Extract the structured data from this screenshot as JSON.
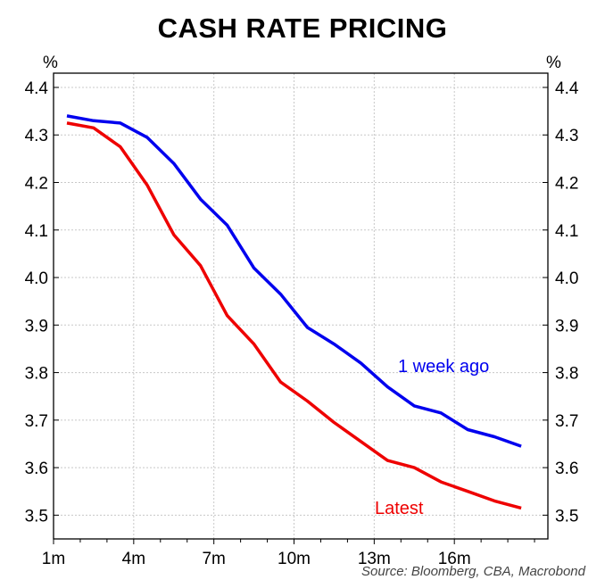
{
  "chart_data": {
    "type": "line",
    "title": "CASH RATE PRICING",
    "left_unit": "%",
    "right_unit": "%",
    "source": "Source: Bloomberg, CBA, Macrobond",
    "ylim": [
      3.45,
      4.43
    ],
    "yticks": [
      3.5,
      3.6,
      3.7,
      3.8,
      3.9,
      4.0,
      4.1,
      4.2,
      4.3,
      4.4
    ],
    "ytick_labels": [
      "3.5",
      "3.6",
      "3.7",
      "3.8",
      "3.9",
      "4.0",
      "4.1",
      "4.2",
      "4.3",
      "4.4"
    ],
    "xlim": [
      0,
      18.5
    ],
    "xticks": [
      0,
      3,
      6,
      9,
      12,
      15
    ],
    "xtick_labels": [
      "1m",
      "4m",
      "7m",
      "10m",
      "13m",
      "16m"
    ],
    "grid": true,
    "series": [
      {
        "name": "1 week ago",
        "color": "#0000ee",
        "x": [
          0.5,
          1.5,
          2.5,
          3.5,
          4.5,
          5.5,
          6.5,
          7.5,
          8.5,
          9.5,
          10.5,
          11.5,
          12.5,
          13.5,
          14.5,
          15.5,
          16.5,
          17.5
        ],
        "y": [
          4.34,
          4.33,
          4.325,
          4.295,
          4.24,
          4.165,
          4.11,
          4.02,
          3.965,
          3.895,
          3.86,
          3.82,
          3.77,
          3.73,
          3.715,
          3.68,
          3.665,
          3.645
        ]
      },
      {
        "name": "Latest",
        "color": "#ee0000",
        "x": [
          0.5,
          1.5,
          2.5,
          3.5,
          4.5,
          5.5,
          6.5,
          7.5,
          8.5,
          9.5,
          10.5,
          11.5,
          12.5,
          13.5,
          14.5,
          15.5,
          16.5,
          17.5
        ],
        "y": [
          4.325,
          4.315,
          4.275,
          4.195,
          4.09,
          4.025,
          3.92,
          3.86,
          3.78,
          3.74,
          3.695,
          3.655,
          3.615,
          3.6,
          3.57,
          3.55,
          3.53,
          3.515
        ]
      }
    ]
  }
}
